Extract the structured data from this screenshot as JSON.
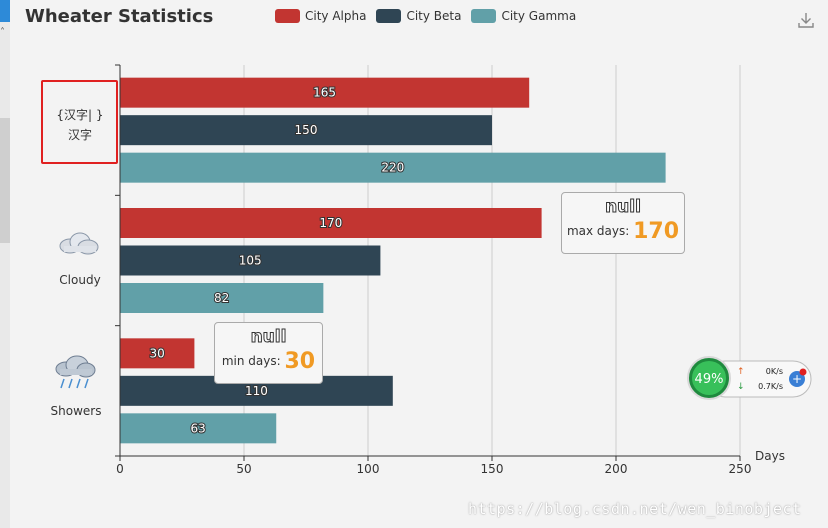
{
  "title": "Wheater Statistics",
  "legend": [
    {
      "name": "City Alpha",
      "color": "#c23531"
    },
    {
      "name": "City Beta",
      "color": "#2f4554"
    },
    {
      "name": "City Gamma",
      "color": "#61a0a8"
    }
  ],
  "chart_data": {
    "type": "bar",
    "orientation": "horizontal",
    "categories": [
      "{汉字| }\n汉字",
      "Cloudy",
      "Showers"
    ],
    "series": [
      {
        "name": "City Alpha",
        "color": "#c23531",
        "values": [
          165,
          170,
          30
        ]
      },
      {
        "name": "City Beta",
        "color": "#2f4554",
        "values": [
          150,
          105,
          110
        ]
      },
      {
        "name": "City Gamma",
        "color": "#61a0a8",
        "values": [
          220,
          82,
          63
        ]
      }
    ],
    "xlabel": "Days",
    "xlim": [
      0,
      250
    ],
    "xticks": [
      0,
      50,
      100,
      150,
      200,
      250
    ],
    "grid": true,
    "legend_position": "top"
  },
  "category_labels": {
    "sunny_line1": "{汉字| }",
    "sunny_line2": "汉字",
    "cloudy": "Cloudy",
    "showers": "Showers"
  },
  "markers": {
    "max": {
      "title": "null",
      "label": "max days:",
      "value": "170"
    },
    "min": {
      "title": "null",
      "label": "min days:",
      "value": "30"
    }
  },
  "speed_widget": {
    "percent": "49%",
    "up": "0K/s",
    "down": "0.7K/s"
  },
  "watermark": "https://blog.csdn.net/wen_binobject",
  "icons": {
    "download": "download-icon",
    "cloudy": "cloud-icon",
    "showers": "rain-cloud-icon"
  }
}
